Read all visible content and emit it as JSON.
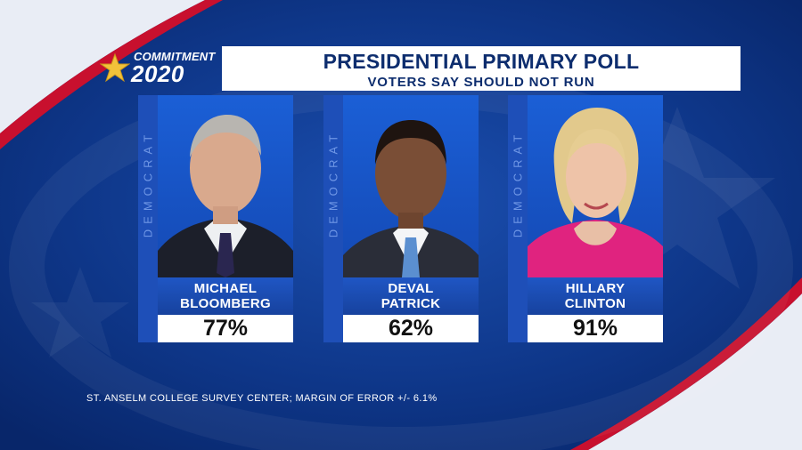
{
  "header": {
    "logo_line1": "COMMITMENT",
    "logo_line2": "2020",
    "title": "PRESIDENTIAL PRIMARY POLL",
    "subtitle": "VOTERS SAY SHOULD NOT RUN"
  },
  "candidates": [
    {
      "party": "DEMOCRAT",
      "name_line1": "MICHAEL",
      "name_line2": "BLOOMBERG",
      "percent": "77%",
      "percent_value": 77
    },
    {
      "party": "DEMOCRAT",
      "name_line1": "DEVAL",
      "name_line2": "PATRICK",
      "percent": "62%",
      "percent_value": 62
    },
    {
      "party": "DEMOCRAT",
      "name_line1": "HILLARY",
      "name_line2": "CLINTON",
      "percent": "91%",
      "percent_value": 91
    }
  ],
  "footer": {
    "source": "ST. ANSELM COLLEGE SURVEY CENTER; MARGIN OF ERROR +/- 6.1%"
  },
  "colors": {
    "background": "#0a2f7a",
    "accent_red": "#c8102e",
    "card_blue": "#1e4fb8",
    "title_text": "#0d2d6e"
  },
  "icons": {
    "logo_star": "star-icon"
  }
}
